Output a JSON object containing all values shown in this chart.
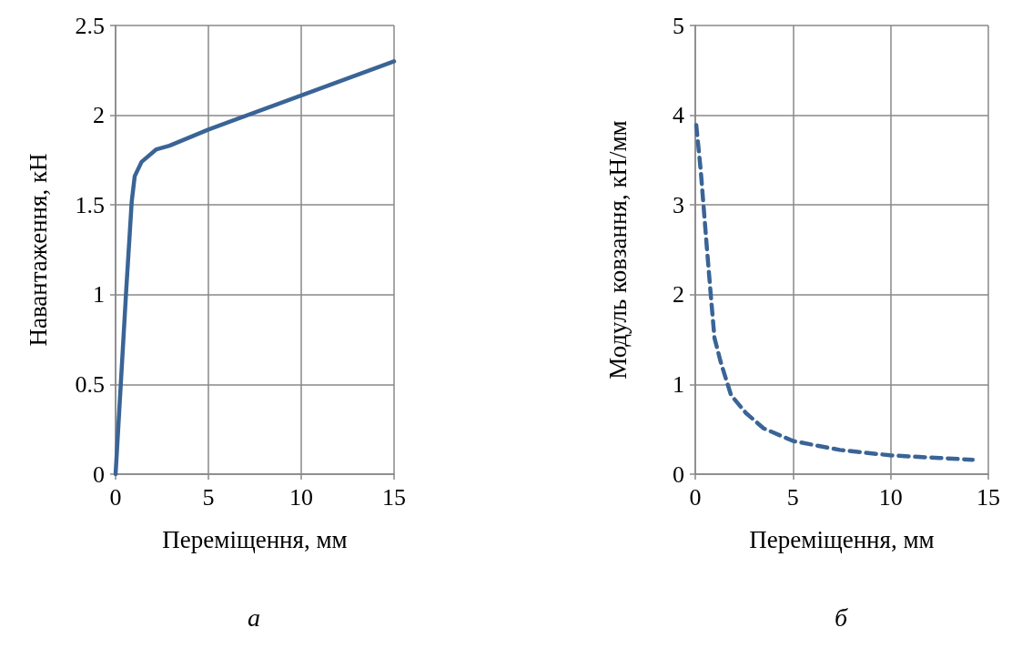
{
  "chart_data": [
    {
      "type": "line",
      "xlabel": "Переміщення, мм",
      "ylabel": "Навантаження, кН",
      "annotations": [
        "а"
      ],
      "series": [
        {
          "color": "#3a6496",
          "x": [
            0,
            0.57,
            0.87,
            1.03,
            1.4,
            2.2,
            2.9,
            5,
            10,
            15
          ],
          "values": [
            0,
            1.02,
            1.52,
            1.66,
            1.74,
            1.81,
            1.83,
            1.92,
            2.11,
            2.3
          ]
        }
      ],
      "xlim": [
        0,
        15
      ],
      "xticks": [
        0,
        5,
        10,
        15
      ],
      "ylim": [
        0,
        2.5
      ],
      "yticks": [
        0,
        0.5,
        1,
        1.5,
        2,
        2.5
      ],
      "grid": true,
      "marker": "none",
      "line_style": "solid"
    },
    {
      "type": "line",
      "xlabel": "Переміщення, мм",
      "ylabel": "Модуль ковзання, кН/мм",
      "annotations": [
        "б"
      ],
      "series": [
        {
          "color": "#3a6496",
          "x": [
            0.05,
            0.28,
            0.43,
            0.59,
            0.78,
            0.98,
            1.3,
            1.83,
            2.6,
            3.5,
            5,
            7.4,
            9.97,
            12.5,
            14.2
          ],
          "values": [
            3.89,
            3.38,
            2.97,
            2.53,
            2.03,
            1.52,
            1.25,
            0.88,
            0.68,
            0.51,
            0.37,
            0.27,
            0.21,
            0.18,
            0.16
          ]
        }
      ],
      "xlim": [
        0,
        15
      ],
      "xticks": [
        0,
        5,
        10,
        15
      ],
      "ylim": [
        0,
        5
      ],
      "yticks": [
        0,
        1,
        2,
        3,
        4,
        5
      ],
      "grid": true,
      "marker": "none",
      "line_style": "dashed"
    }
  ]
}
